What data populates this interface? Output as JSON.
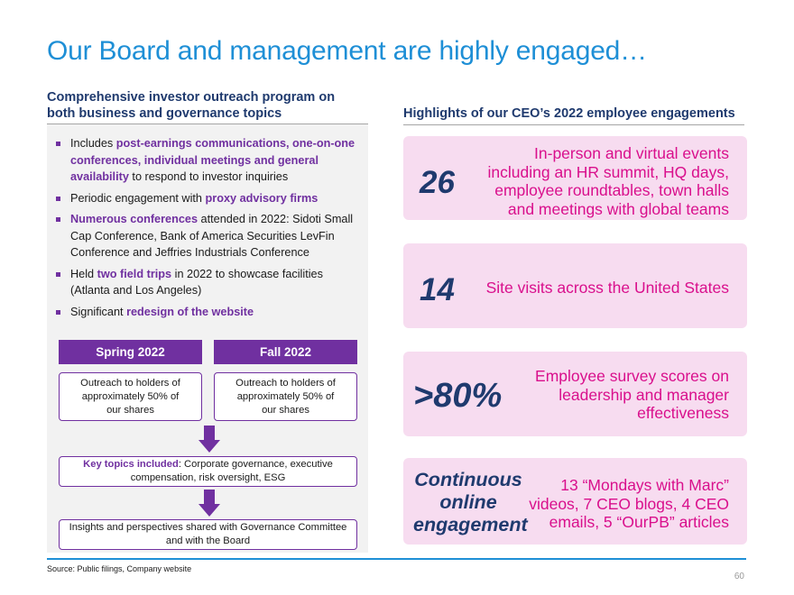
{
  "title": "Our Board and management are highly engaged…",
  "left": {
    "heading_line1": "Comprehensive investor outreach program on",
    "heading_line2": "both business and governance topics",
    "bullets": [
      {
        "pre": "Includes ",
        "hl": "post-earnings communications, one-on-one conferences, individual meetings and general availability",
        "post": " to respond to investor inquiries"
      },
      {
        "pre": "Periodic engagement with ",
        "hl": "proxy advisory firms",
        "post": ""
      },
      {
        "pre": "",
        "hl": "Numerous conferences",
        "post": " attended in 2022: Sidoti Small Cap Conference, Bank of America Securities LevFin Conference and Jeffries Industrials Conference"
      },
      {
        "pre": "Held ",
        "hl": "two field trips",
        "post": " in 2022 to showcase facilities (Atlanta and Los Angeles)"
      },
      {
        "pre": "Significant ",
        "hl": "redesign of the website",
        "post": ""
      }
    ],
    "spring_label": "Spring 2022",
    "fall_label": "Fall 2022",
    "spring_text": "Outreach to holders of approximately 50% of our shares",
    "fall_text": "Outreach to holders of approximately 50% of our shares",
    "key_topics_label": "Key topics included",
    "key_topics_text": ": Corporate governance, executive compensation, risk oversight, ESG",
    "insights_text": "Insights and perspectives shared with Governance Committee and with the Board"
  },
  "right": {
    "heading": "Highlights of our CEO’s 2022 employee engagements",
    "cards": [
      {
        "value": "26",
        "text": "In-person and virtual events including an HR summit, HQ days, employee roundtables, town halls and meetings with global teams"
      },
      {
        "value": "14",
        "text": "Site visits across the United States"
      },
      {
        "value": ">80%",
        "text": "Employee survey scores on leadership and manager effectiveness"
      },
      {
        "value": "Continuous online engagement",
        "text": "13 “Mondays with Marc” videos, 7 CEO blogs, 4 CEO emails, 5 “OurPB” articles"
      }
    ]
  },
  "footer": {
    "source": "Source: Public filings, Company website",
    "page_number": "60"
  },
  "colors": {
    "title_blue": "#1e8fd6",
    "navy": "#1f3a6e",
    "purple": "#7030a0",
    "magenta": "#d90f8c",
    "card_pink": "#f7dcf0"
  }
}
